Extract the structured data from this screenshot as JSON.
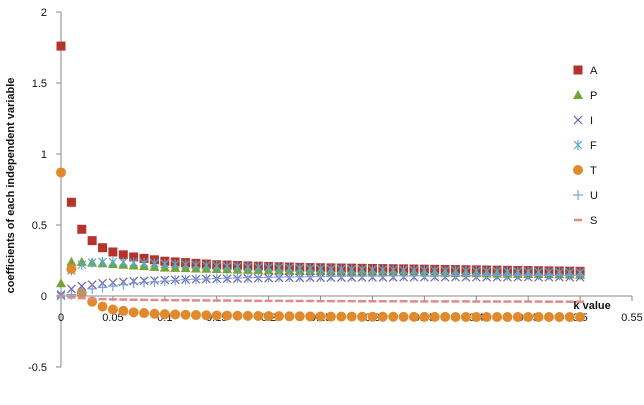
{
  "chart_data": {
    "type": "scatter",
    "xlabel": "k value",
    "ylabel": "coefficients of each independent variable",
    "xlim": [
      0,
      0.55
    ],
    "ylim": [
      -0.5,
      2
    ],
    "x_ticks": [
      "0",
      "0.05",
      "0.1",
      "0.15",
      "0.2",
      "0.25",
      "0.3",
      "0.35",
      "0.4",
      "0.45",
      "0.5",
      "0.55"
    ],
    "y_ticks": [
      "-0.5",
      "0",
      "0.5",
      "1",
      "1.5",
      "2"
    ],
    "legend_position": "right",
    "grid": false,
    "series": [
      {
        "name": "A",
        "marker": "square",
        "color": "#b5332d",
        "x": [
          0,
          0.01,
          0.02,
          0.03,
          0.04,
          0.05,
          0.06,
          0.07,
          0.08,
          0.09,
          0.1,
          0.11,
          0.12,
          0.13,
          0.14,
          0.15,
          0.16,
          0.17,
          0.18,
          0.19,
          0.2,
          0.21,
          0.22,
          0.23,
          0.24,
          0.25,
          0.26,
          0.27,
          0.28,
          0.29,
          0.3,
          0.31,
          0.32,
          0.33,
          0.34,
          0.35,
          0.36,
          0.37,
          0.38,
          0.39,
          0.4,
          0.41,
          0.42,
          0.43,
          0.44,
          0.45,
          0.46,
          0.47,
          0.48,
          0.49,
          0.5
        ],
        "values": [
          1.76,
          0.66,
          0.47,
          0.39,
          0.34,
          0.31,
          0.29,
          0.275,
          0.265,
          0.255,
          0.245,
          0.24,
          0.235,
          0.23,
          0.225,
          0.22,
          0.218,
          0.215,
          0.212,
          0.21,
          0.208,
          0.206,
          0.204,
          0.202,
          0.2,
          0.199,
          0.198,
          0.197,
          0.196,
          0.195,
          0.194,
          0.193,
          0.192,
          0.191,
          0.19,
          0.189,
          0.188,
          0.187,
          0.186,
          0.185,
          0.184,
          0.183,
          0.182,
          0.181,
          0.18,
          0.179,
          0.178,
          0.177,
          0.176,
          0.175,
          0.174
        ]
      },
      {
        "name": "P",
        "marker": "triangle",
        "color": "#77a335",
        "x": [
          0,
          0.01,
          0.02,
          0.03,
          0.04,
          0.05,
          0.06,
          0.07,
          0.08,
          0.09,
          0.1,
          0.11,
          0.12,
          0.13,
          0.14,
          0.15,
          0.16,
          0.17,
          0.18,
          0.19,
          0.2,
          0.21,
          0.22,
          0.23,
          0.24,
          0.25,
          0.26,
          0.27,
          0.28,
          0.29,
          0.3,
          0.31,
          0.32,
          0.33,
          0.34,
          0.35,
          0.36,
          0.37,
          0.38,
          0.39,
          0.4,
          0.41,
          0.42,
          0.43,
          0.44,
          0.45,
          0.46,
          0.47,
          0.48,
          0.49,
          0.5
        ],
        "values": [
          0.09,
          0.24,
          0.24,
          0.235,
          0.23,
          0.225,
          0.22,
          0.215,
          0.21,
          0.205,
          0.2,
          0.198,
          0.196,
          0.194,
          0.192,
          0.19,
          0.188,
          0.186,
          0.184,
          0.182,
          0.18,
          0.179,
          0.178,
          0.177,
          0.176,
          0.175,
          0.174,
          0.173,
          0.172,
          0.171,
          0.17,
          0.169,
          0.168,
          0.167,
          0.166,
          0.165,
          0.164,
          0.163,
          0.162,
          0.161,
          0.16,
          0.159,
          0.158,
          0.157,
          0.156,
          0.155,
          0.154,
          0.153,
          0.152,
          0.151,
          0.15
        ]
      },
      {
        "name": "I",
        "marker": "x",
        "color": "#6a5fa8",
        "x": [
          0,
          0.01,
          0.02,
          0.03,
          0.04,
          0.05,
          0.06,
          0.07,
          0.08,
          0.09,
          0.1,
          0.11,
          0.12,
          0.13,
          0.14,
          0.15,
          0.16,
          0.17,
          0.18,
          0.19,
          0.2,
          0.21,
          0.22,
          0.23,
          0.24,
          0.25,
          0.26,
          0.27,
          0.28,
          0.29,
          0.3,
          0.31,
          0.32,
          0.33,
          0.34,
          0.35,
          0.36,
          0.37,
          0.38,
          0.39,
          0.4,
          0.41,
          0.42,
          0.43,
          0.44,
          0.45,
          0.46,
          0.47,
          0.48,
          0.49,
          0.5
        ],
        "values": [
          0.01,
          0.05,
          0.07,
          0.08,
          0.09,
          0.095,
          0.1,
          0.105,
          0.108,
          0.11,
          0.112,
          0.114,
          0.116,
          0.118,
          0.12,
          0.121,
          0.122,
          0.123,
          0.124,
          0.125,
          0.126,
          0.127,
          0.128,
          0.128,
          0.129,
          0.129,
          0.13,
          0.13,
          0.13,
          0.131,
          0.131,
          0.131,
          0.131,
          0.132,
          0.132,
          0.132,
          0.132,
          0.132,
          0.132,
          0.132,
          0.132,
          0.132,
          0.132,
          0.132,
          0.132,
          0.132,
          0.132,
          0.132,
          0.132,
          0.132,
          0.132
        ]
      },
      {
        "name": "F",
        "marker": "star",
        "color": "#5aa9c7",
        "x": [
          0,
          0.01,
          0.02,
          0.03,
          0.04,
          0.05,
          0.06,
          0.07,
          0.08,
          0.09,
          0.1,
          0.11,
          0.12,
          0.13,
          0.14,
          0.15,
          0.16,
          0.17,
          0.18,
          0.19,
          0.2,
          0.21,
          0.22,
          0.23,
          0.24,
          0.25,
          0.26,
          0.27,
          0.28,
          0.29,
          0.3,
          0.31,
          0.32,
          0.33,
          0.34,
          0.35,
          0.36,
          0.37,
          0.38,
          0.39,
          0.4,
          0.41,
          0.42,
          0.43,
          0.44,
          0.45,
          0.46,
          0.47,
          0.48,
          0.49,
          0.5
        ],
        "values": [
          0.0,
          0.18,
          0.22,
          0.235,
          0.24,
          0.24,
          0.238,
          0.236,
          0.233,
          0.23,
          0.227,
          0.224,
          0.221,
          0.218,
          0.215,
          0.212,
          0.21,
          0.208,
          0.206,
          0.204,
          0.202,
          0.2,
          0.198,
          0.196,
          0.194,
          0.192,
          0.19,
          0.189,
          0.188,
          0.187,
          0.186,
          0.185,
          0.184,
          0.183,
          0.182,
          0.181,
          0.18,
          0.179,
          0.178,
          0.177,
          0.176,
          0.175,
          0.174,
          0.173,
          0.172,
          0.171,
          0.17,
          0.169,
          0.168,
          0.167,
          0.166
        ]
      },
      {
        "name": "T",
        "marker": "circle",
        "color": "#e08a2c",
        "x": [
          0,
          0.01,
          0.02,
          0.03,
          0.04,
          0.05,
          0.06,
          0.07,
          0.08,
          0.09,
          0.1,
          0.11,
          0.12,
          0.13,
          0.14,
          0.15,
          0.16,
          0.17,
          0.18,
          0.19,
          0.2,
          0.21,
          0.22,
          0.23,
          0.24,
          0.25,
          0.26,
          0.27,
          0.28,
          0.29,
          0.3,
          0.31,
          0.32,
          0.33,
          0.34,
          0.35,
          0.36,
          0.37,
          0.38,
          0.39,
          0.4,
          0.41,
          0.42,
          0.43,
          0.44,
          0.45,
          0.46,
          0.47,
          0.48,
          0.49,
          0.5
        ],
        "values": [
          0.87,
          0.19,
          0.02,
          -0.04,
          -0.075,
          -0.095,
          -0.105,
          -0.115,
          -0.12,
          -0.125,
          -0.128,
          -0.13,
          -0.132,
          -0.134,
          -0.136,
          -0.137,
          -0.138,
          -0.139,
          -0.14,
          -0.141,
          -0.142,
          -0.142,
          -0.143,
          -0.143,
          -0.144,
          -0.144,
          -0.145,
          -0.145,
          -0.145,
          -0.146,
          -0.146,
          -0.146,
          -0.146,
          -0.147,
          -0.147,
          -0.147,
          -0.147,
          -0.147,
          -0.148,
          -0.148,
          -0.148,
          -0.148,
          -0.148,
          -0.148,
          -0.148,
          -0.148,
          -0.148,
          -0.148,
          -0.148,
          -0.148,
          -0.148
        ]
      },
      {
        "name": "U",
        "marker": "plus",
        "color": "#7aa0d8",
        "x": [
          0,
          0.01,
          0.02,
          0.03,
          0.04,
          0.05,
          0.06,
          0.07,
          0.08,
          0.09,
          0.1,
          0.11,
          0.12,
          0.13,
          0.14,
          0.15,
          0.16,
          0.17,
          0.18,
          0.19,
          0.2,
          0.21,
          0.22,
          0.23,
          0.24,
          0.25,
          0.26,
          0.27,
          0.28,
          0.29,
          0.3,
          0.31,
          0.32,
          0.33,
          0.34,
          0.35,
          0.36,
          0.37,
          0.38,
          0.39,
          0.4,
          0.41,
          0.42,
          0.43,
          0.44,
          0.45,
          0.46,
          0.47,
          0.48,
          0.49,
          0.5
        ],
        "values": [
          0.0,
          0.01,
          0.03,
          0.05,
          0.06,
          0.07,
          0.08,
          0.09,
          0.095,
          0.1,
          0.105,
          0.11,
          0.115,
          0.118,
          0.12,
          0.123,
          0.125,
          0.127,
          0.129,
          0.13,
          0.132,
          0.133,
          0.134,
          0.135,
          0.136,
          0.137,
          0.138,
          0.139,
          0.14,
          0.14,
          0.141,
          0.141,
          0.142,
          0.142,
          0.143,
          0.143,
          0.143,
          0.144,
          0.144,
          0.144,
          0.144,
          0.145,
          0.145,
          0.145,
          0.145,
          0.145,
          0.145,
          0.145,
          0.145,
          0.145,
          0.145
        ]
      },
      {
        "name": "S",
        "marker": "dash",
        "color": "#e08a8a",
        "x": [
          0,
          0.01,
          0.02,
          0.03,
          0.04,
          0.05,
          0.06,
          0.07,
          0.08,
          0.09,
          0.1,
          0.11,
          0.12,
          0.13,
          0.14,
          0.15,
          0.16,
          0.17,
          0.18,
          0.19,
          0.2,
          0.21,
          0.22,
          0.23,
          0.24,
          0.25,
          0.26,
          0.27,
          0.28,
          0.29,
          0.3,
          0.31,
          0.32,
          0.33,
          0.34,
          0.35,
          0.36,
          0.37,
          0.38,
          0.39,
          0.4,
          0.41,
          0.42,
          0.43,
          0.44,
          0.45,
          0.46,
          0.47,
          0.48,
          0.49,
          0.5
        ],
        "values": [
          0.0,
          -0.01,
          -0.015,
          -0.02,
          -0.022,
          -0.024,
          -0.025,
          -0.026,
          -0.027,
          -0.028,
          -0.029,
          -0.03,
          -0.03,
          -0.031,
          -0.031,
          -0.032,
          -0.032,
          -0.033,
          -0.033,
          -0.034,
          -0.034,
          -0.034,
          -0.035,
          -0.035,
          -0.035,
          -0.036,
          -0.036,
          -0.036,
          -0.036,
          -0.037,
          -0.037,
          -0.037,
          -0.037,
          -0.037,
          -0.038,
          -0.038,
          -0.038,
          -0.038,
          -0.038,
          -0.038,
          -0.039,
          -0.039,
          -0.039,
          -0.039,
          -0.039,
          -0.039,
          -0.039,
          -0.04,
          -0.04,
          -0.04,
          -0.04
        ]
      }
    ]
  }
}
